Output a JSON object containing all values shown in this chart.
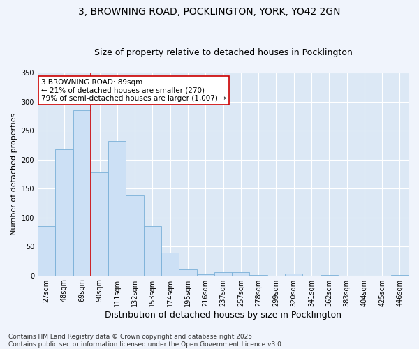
{
  "title_line1": "3, BROWNING ROAD, POCKLINGTON, YORK, YO42 2GN",
  "title_line2": "Size of property relative to detached houses in Pocklington",
  "xlabel": "Distribution of detached houses by size in Pocklington",
  "ylabel": "Number of detached properties",
  "categories": [
    "27sqm",
    "48sqm",
    "69sqm",
    "90sqm",
    "111sqm",
    "132sqm",
    "153sqm",
    "174sqm",
    "195sqm",
    "216sqm",
    "237sqm",
    "257sqm",
    "278sqm",
    "299sqm",
    "320sqm",
    "341sqm",
    "362sqm",
    "383sqm",
    "404sqm",
    "425sqm",
    "446sqm"
  ],
  "values": [
    85,
    218,
    285,
    178,
    232,
    138,
    85,
    39,
    10,
    2,
    5,
    6,
    1,
    0,
    3,
    0,
    1,
    0,
    0,
    0,
    1
  ],
  "bar_color": "#cce0f5",
  "bar_edge_color": "#7ab0d8",
  "vline_color": "#cc0000",
  "vline_x": 2.5,
  "annotation_text": "3 BROWNING ROAD: 89sqm\n← 21% of detached houses are smaller (270)\n79% of semi-detached houses are larger (1,007) →",
  "annotation_box_facecolor": "#ffffff",
  "annotation_box_edgecolor": "#cc0000",
  "ylim": [
    0,
    350
  ],
  "yticks": [
    0,
    50,
    100,
    150,
    200,
    250,
    300,
    350
  ],
  "plot_bg_color": "#dce8f5",
  "figure_bg_color": "#f0f4fc",
  "grid_color": "#ffffff",
  "footer_line1": "Contains HM Land Registry data © Crown copyright and database right 2025.",
  "footer_line2": "Contains public sector information licensed under the Open Government Licence v3.0.",
  "title_fontsize": 10,
  "subtitle_fontsize": 9,
  "xlabel_fontsize": 9,
  "ylabel_fontsize": 8,
  "tick_fontsize": 7,
  "annotation_fontsize": 7.5,
  "footer_fontsize": 6.5
}
